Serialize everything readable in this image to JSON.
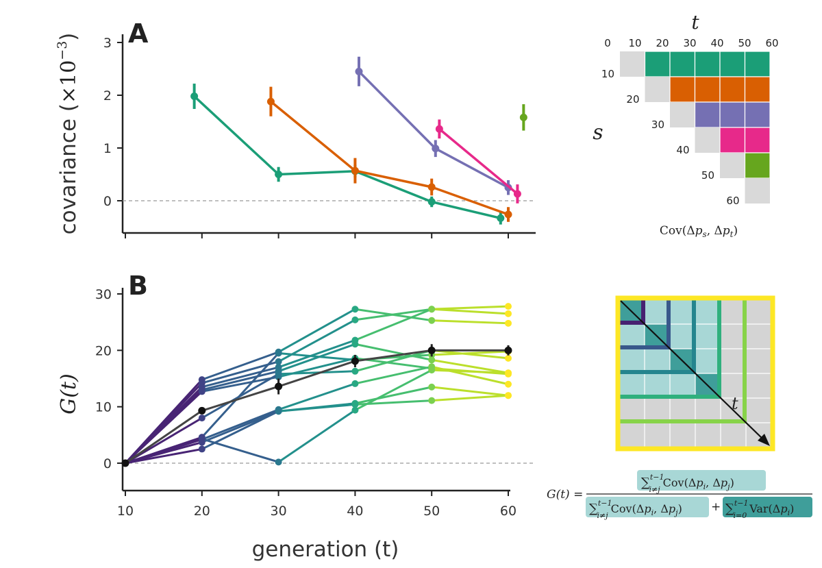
{
  "chart_data": [
    {
      "panel": "A",
      "type": "line",
      "xlabel": "generation (t)",
      "ylabel": "covariance (×10⁻³)",
      "ylabel_main": "covariance (",
      "ylabel_mult": "×10",
      "ylabel_exp": "−3",
      "ylabel_close": ")",
      "xlim": [
        9,
        62
      ],
      "ylim": [
        -0.65,
        3.1
      ],
      "x_ticks": [
        10,
        20,
        30,
        40,
        50,
        60
      ],
      "y_ticks": [
        0,
        1,
        2,
        3
      ],
      "zero_line": true,
      "series": [
        {
          "color": "#1b9e77",
          "x": [
            19,
            30,
            40,
            50,
            59
          ],
          "y": [
            1.98,
            0.5,
            0.56,
            -0.02,
            -0.33
          ],
          "err": [
            0.24,
            0.14,
            0.12,
            0.1,
            0.12
          ]
        },
        {
          "color": "#d95f02",
          "x": [
            29,
            40,
            50,
            60
          ],
          "y": [
            1.88,
            0.57,
            0.26,
            -0.26
          ],
          "err": [
            0.28,
            0.24,
            0.16,
            0.14
          ]
        },
        {
          "color": "#7570b3",
          "x": [
            40.5,
            50.5,
            60
          ],
          "y": [
            2.45,
            0.99,
            0.25
          ],
          "err": [
            0.28,
            0.16,
            0.14
          ]
        },
        {
          "color": "#e7298a",
          "x": [
            51,
            61.2
          ],
          "y": [
            1.36,
            0.13
          ],
          "err": [
            0.18,
            0.18
          ]
        },
        {
          "color": "#66a61e",
          "x": [
            62
          ],
          "y": [
            1.58
          ],
          "err": [
            0.25
          ]
        }
      ]
    },
    {
      "panel": "B",
      "type": "line",
      "xlabel": "generation (t)",
      "ylabel": "G(t)",
      "xlim": [
        9.7,
        62.5
      ],
      "ylim": [
        -4.8,
        30
      ],
      "x_ticks": [
        10,
        20,
        30,
        40,
        50,
        60
      ],
      "y_ticks": [
        0,
        10,
        20,
        30
      ],
      "zero_line": true,
      "replicates": [
        {
          "y": [
            0,
            14.8,
            19.7,
            27.3,
            25.3,
            24.8
          ]
        },
        {
          "y": [
            0,
            14.2,
            18.0,
            25.4,
            27.3,
            26.5
          ]
        },
        {
          "y": [
            0,
            13.5,
            17.0,
            21.8,
            27.3,
            27.8
          ]
        },
        {
          "y": [
            0,
            13.0,
            16.3,
            21.1,
            18.3,
            16.0
          ]
        },
        {
          "y": [
            0,
            12.7,
            15.3,
            18.6,
            16.8,
            15.8
          ]
        },
        {
          "y": [
            0,
            8.0,
            15.8,
            16.3,
            20.0,
            18.6
          ]
        },
        {
          "y": [
            0,
            4.6,
            19.5,
            18.3,
            19.2,
            19.8
          ]
        },
        {
          "y": [
            0,
            4.2,
            9.5,
            14.1,
            17.1,
            14.0
          ]
        },
        {
          "y": [
            0,
            3.7,
            9.2,
            10.6,
            13.5,
            12.0
          ]
        },
        {
          "y": [
            0,
            2.5,
            9.2,
            10.4,
            11.1,
            12.0
          ]
        },
        {
          "y": [
            0,
            4.3,
            0.2,
            9.4,
            16.5,
            16.0
          ]
        }
      ],
      "mean_series": {
        "color": "#222222",
        "x": [
          10,
          20,
          30,
          40,
          50,
          60
        ],
        "y": [
          0,
          9.3,
          13.6,
          18.1,
          20.0,
          20.0
        ],
        "err": [
          0.0,
          0.6,
          1.4,
          1.1,
          1.1,
          0.9
        ]
      },
      "colormap": "viridis"
    }
  ],
  "schematic_a": {
    "t_label": "t",
    "s_label": "s",
    "col_labels": [
      "0",
      "10",
      "20",
      "30",
      "40",
      "50",
      "60"
    ],
    "row_labels": [
      "10",
      "20",
      "30",
      "40",
      "50",
      "60"
    ],
    "row_colors": [
      "#1b9e77",
      "#d95f02",
      "#7570b3",
      "#e7298a",
      "#66a61e"
    ],
    "diag_color": "#d9d9d9",
    "caption": "Cov(Δp_s, Δp_t)",
    "caption_func": "Cov(Δ",
    "caption_p1": "p",
    "caption_s1": "s",
    "caption_mid": ", Δ",
    "caption_p2": "p",
    "caption_s2": "t",
    "caption_end": ")"
  },
  "schematic_b": {
    "t_label": "t",
    "frame_color": "#fde725",
    "grid_color": "#d4d4d4",
    "light_fill": "#a8d7d6",
    "dark_fill": "#3f9e9a"
  },
  "formula": {
    "lhs": "G(t) =",
    "numerator": "Σ Cov(Δp_i, Δp_j), i≠j, up to t−1",
    "denominator_a": "Σ Cov(Δp_i, Δp_j), i≠j, up to t−1",
    "denominator_b": "Σ Var(Δp_i), i=0, up to t−1",
    "sum": "∑",
    "t_upper": "t−1",
    "i_ne_j": "i≠j",
    "i_eq_0": "i=0",
    "cov": "Cov(Δ",
    "var": "Var(Δ",
    "p": "p",
    "i": "i",
    "j": "j",
    "comma_delta": ", Δ",
    "close": ")",
    "plus": "+"
  }
}
